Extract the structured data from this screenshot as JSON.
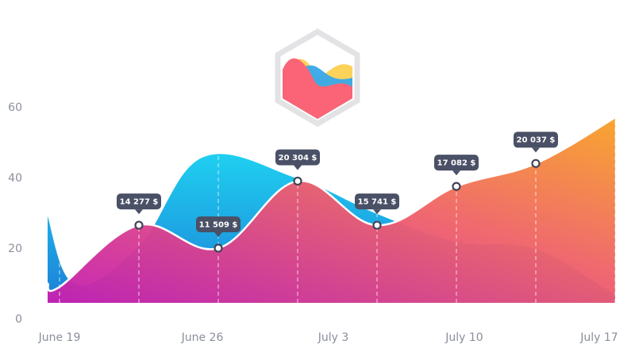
{
  "logo": {
    "name": "chartjs-logo"
  },
  "chart_data": {
    "type": "area",
    "title": "",
    "xlabel": "",
    "ylabel": "",
    "ylim": [
      0,
      60
    ],
    "y_ticks": [
      "0",
      "20",
      "40",
      "60"
    ],
    "x_tick_labels": [
      {
        "label": "June 19",
        "x": 0
      },
      {
        "label": "June 26",
        "x": 1.8
      },
      {
        "label": "July 3",
        "x": 3.45
      },
      {
        "label": "July 10",
        "x": 5.1
      },
      {
        "label": "July 17",
        "x": 6.8
      }
    ],
    "grid": false,
    "legend": "none",
    "series": [
      {
        "colors": [
          "#1fd0f0",
          "#1d7fd8"
        ],
        "points": [
          [
            -0.15,
            30
          ],
          [
            0.2,
            10
          ],
          [
            1.0,
            21
          ],
          [
            1.8,
            46
          ],
          [
            3.0,
            40
          ],
          [
            4.0,
            30
          ],
          [
            5.0,
            22
          ],
          [
            6.0,
            20
          ],
          [
            7.0,
            7
          ]
        ]
      },
      {
        "colors": [
          "#f8a227",
          "#ee5f6d",
          "#c41fb3"
        ],
        "points": [
          [
            -0.15,
            10
          ],
          [
            0.0,
            9
          ],
          [
            1.0,
            26.5
          ],
          [
            2.0,
            20
          ],
          [
            3.0,
            39
          ],
          [
            4.0,
            26.5
          ],
          [
            5.0,
            37.5
          ],
          [
            6.0,
            44
          ],
          [
            7.0,
            57
          ]
        ]
      }
    ],
    "markers": [
      {
        "x": 1.0,
        "y": 26.5,
        "label": "14 277 $"
      },
      {
        "x": 2.0,
        "y": 20,
        "label": "11 509 $"
      },
      {
        "x": 3.0,
        "y": 39,
        "label": "20 304 $"
      },
      {
        "x": 4.0,
        "y": 26.5,
        "label": "15 741 $"
      },
      {
        "x": 5.0,
        "y": 37.5,
        "label": "17 082 $"
      },
      {
        "x": 6.0,
        "y": 44,
        "label": "20 037 $"
      }
    ],
    "dashed_guides_x": [
      0.0,
      1.0,
      2.0,
      3.0,
      4.0,
      5.0,
      6.0,
      7.0
    ],
    "baseline": 4
  }
}
